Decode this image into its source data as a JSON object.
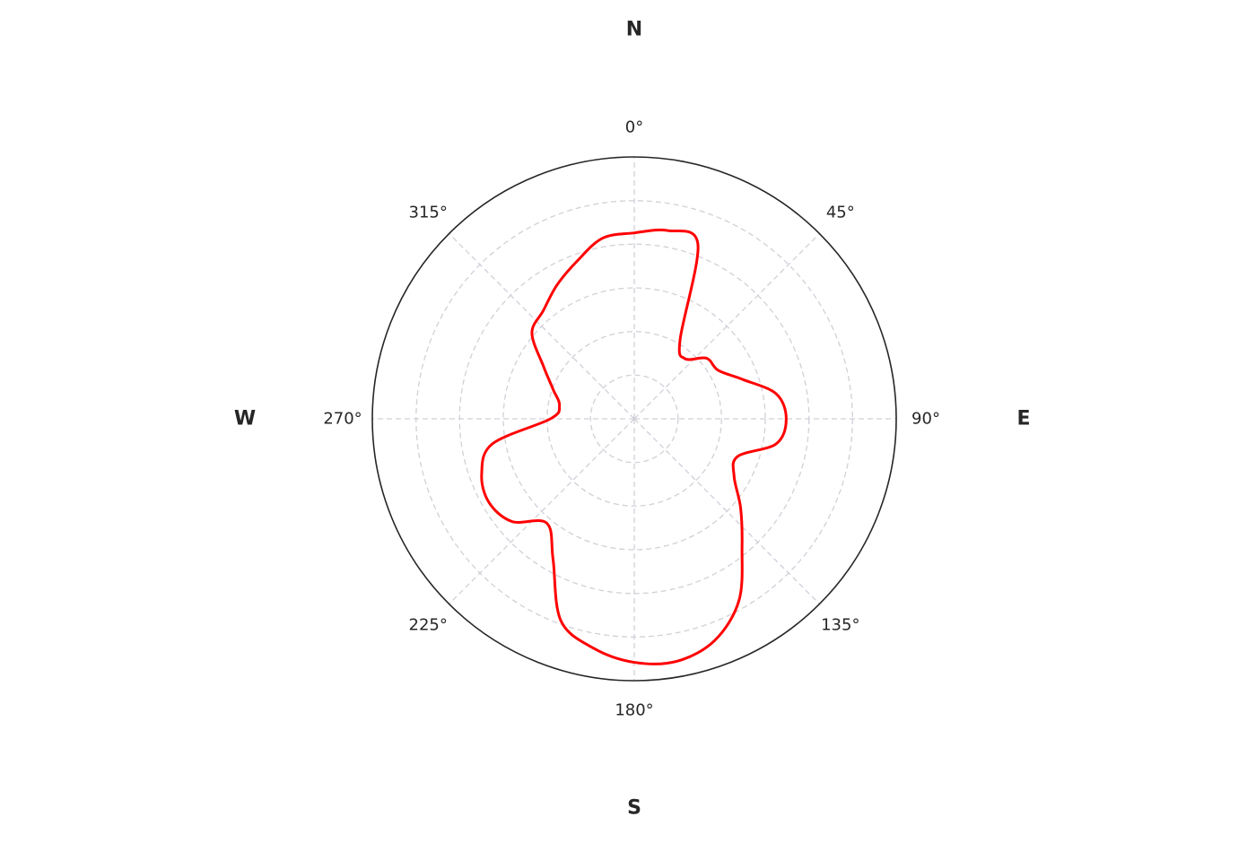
{
  "chart_data": {
    "type": "line",
    "projection": "polar",
    "theta_zero_location": "N",
    "theta_direction": "clockwise",
    "theta_ticks": [
      "0°",
      "45°",
      "90°",
      "135°",
      "180°",
      "225°",
      "270°",
      "315°"
    ],
    "theta_tick_values": [
      0,
      45,
      90,
      135,
      180,
      225,
      270,
      315
    ],
    "compass_labels": {
      "north": "N",
      "east": "E",
      "south": "S",
      "west": "W"
    },
    "rlim": [
      0,
      1
    ],
    "r_grid": [
      0.167,
      0.333,
      0.5,
      0.667,
      0.833
    ],
    "grid": true,
    "radial_tick_labels_visible": false,
    "series": [
      {
        "color": "#ff0000",
        "theta": [
          0,
          10,
          20,
          30,
          40,
          50,
          60,
          70,
          80,
          90,
          100,
          110,
          120,
          130,
          140,
          150,
          160,
          170,
          180,
          190,
          200,
          210,
          220,
          230,
          240,
          250,
          260,
          270,
          280,
          290,
          300,
          310,
          320,
          330,
          340,
          350
        ],
        "r": [
          0.71,
          0.73,
          0.71,
          0.35,
          0.3,
          0.36,
          0.37,
          0.44,
          0.55,
          0.58,
          0.55,
          0.42,
          0.44,
          0.53,
          0.64,
          0.8,
          0.9,
          0.94,
          0.93,
          0.89,
          0.82,
          0.62,
          0.52,
          0.61,
          0.64,
          0.62,
          0.55,
          0.32,
          0.29,
          0.33,
          0.4,
          0.51,
          0.54,
          0.59,
          0.64,
          0.7
        ]
      }
    ]
  }
}
